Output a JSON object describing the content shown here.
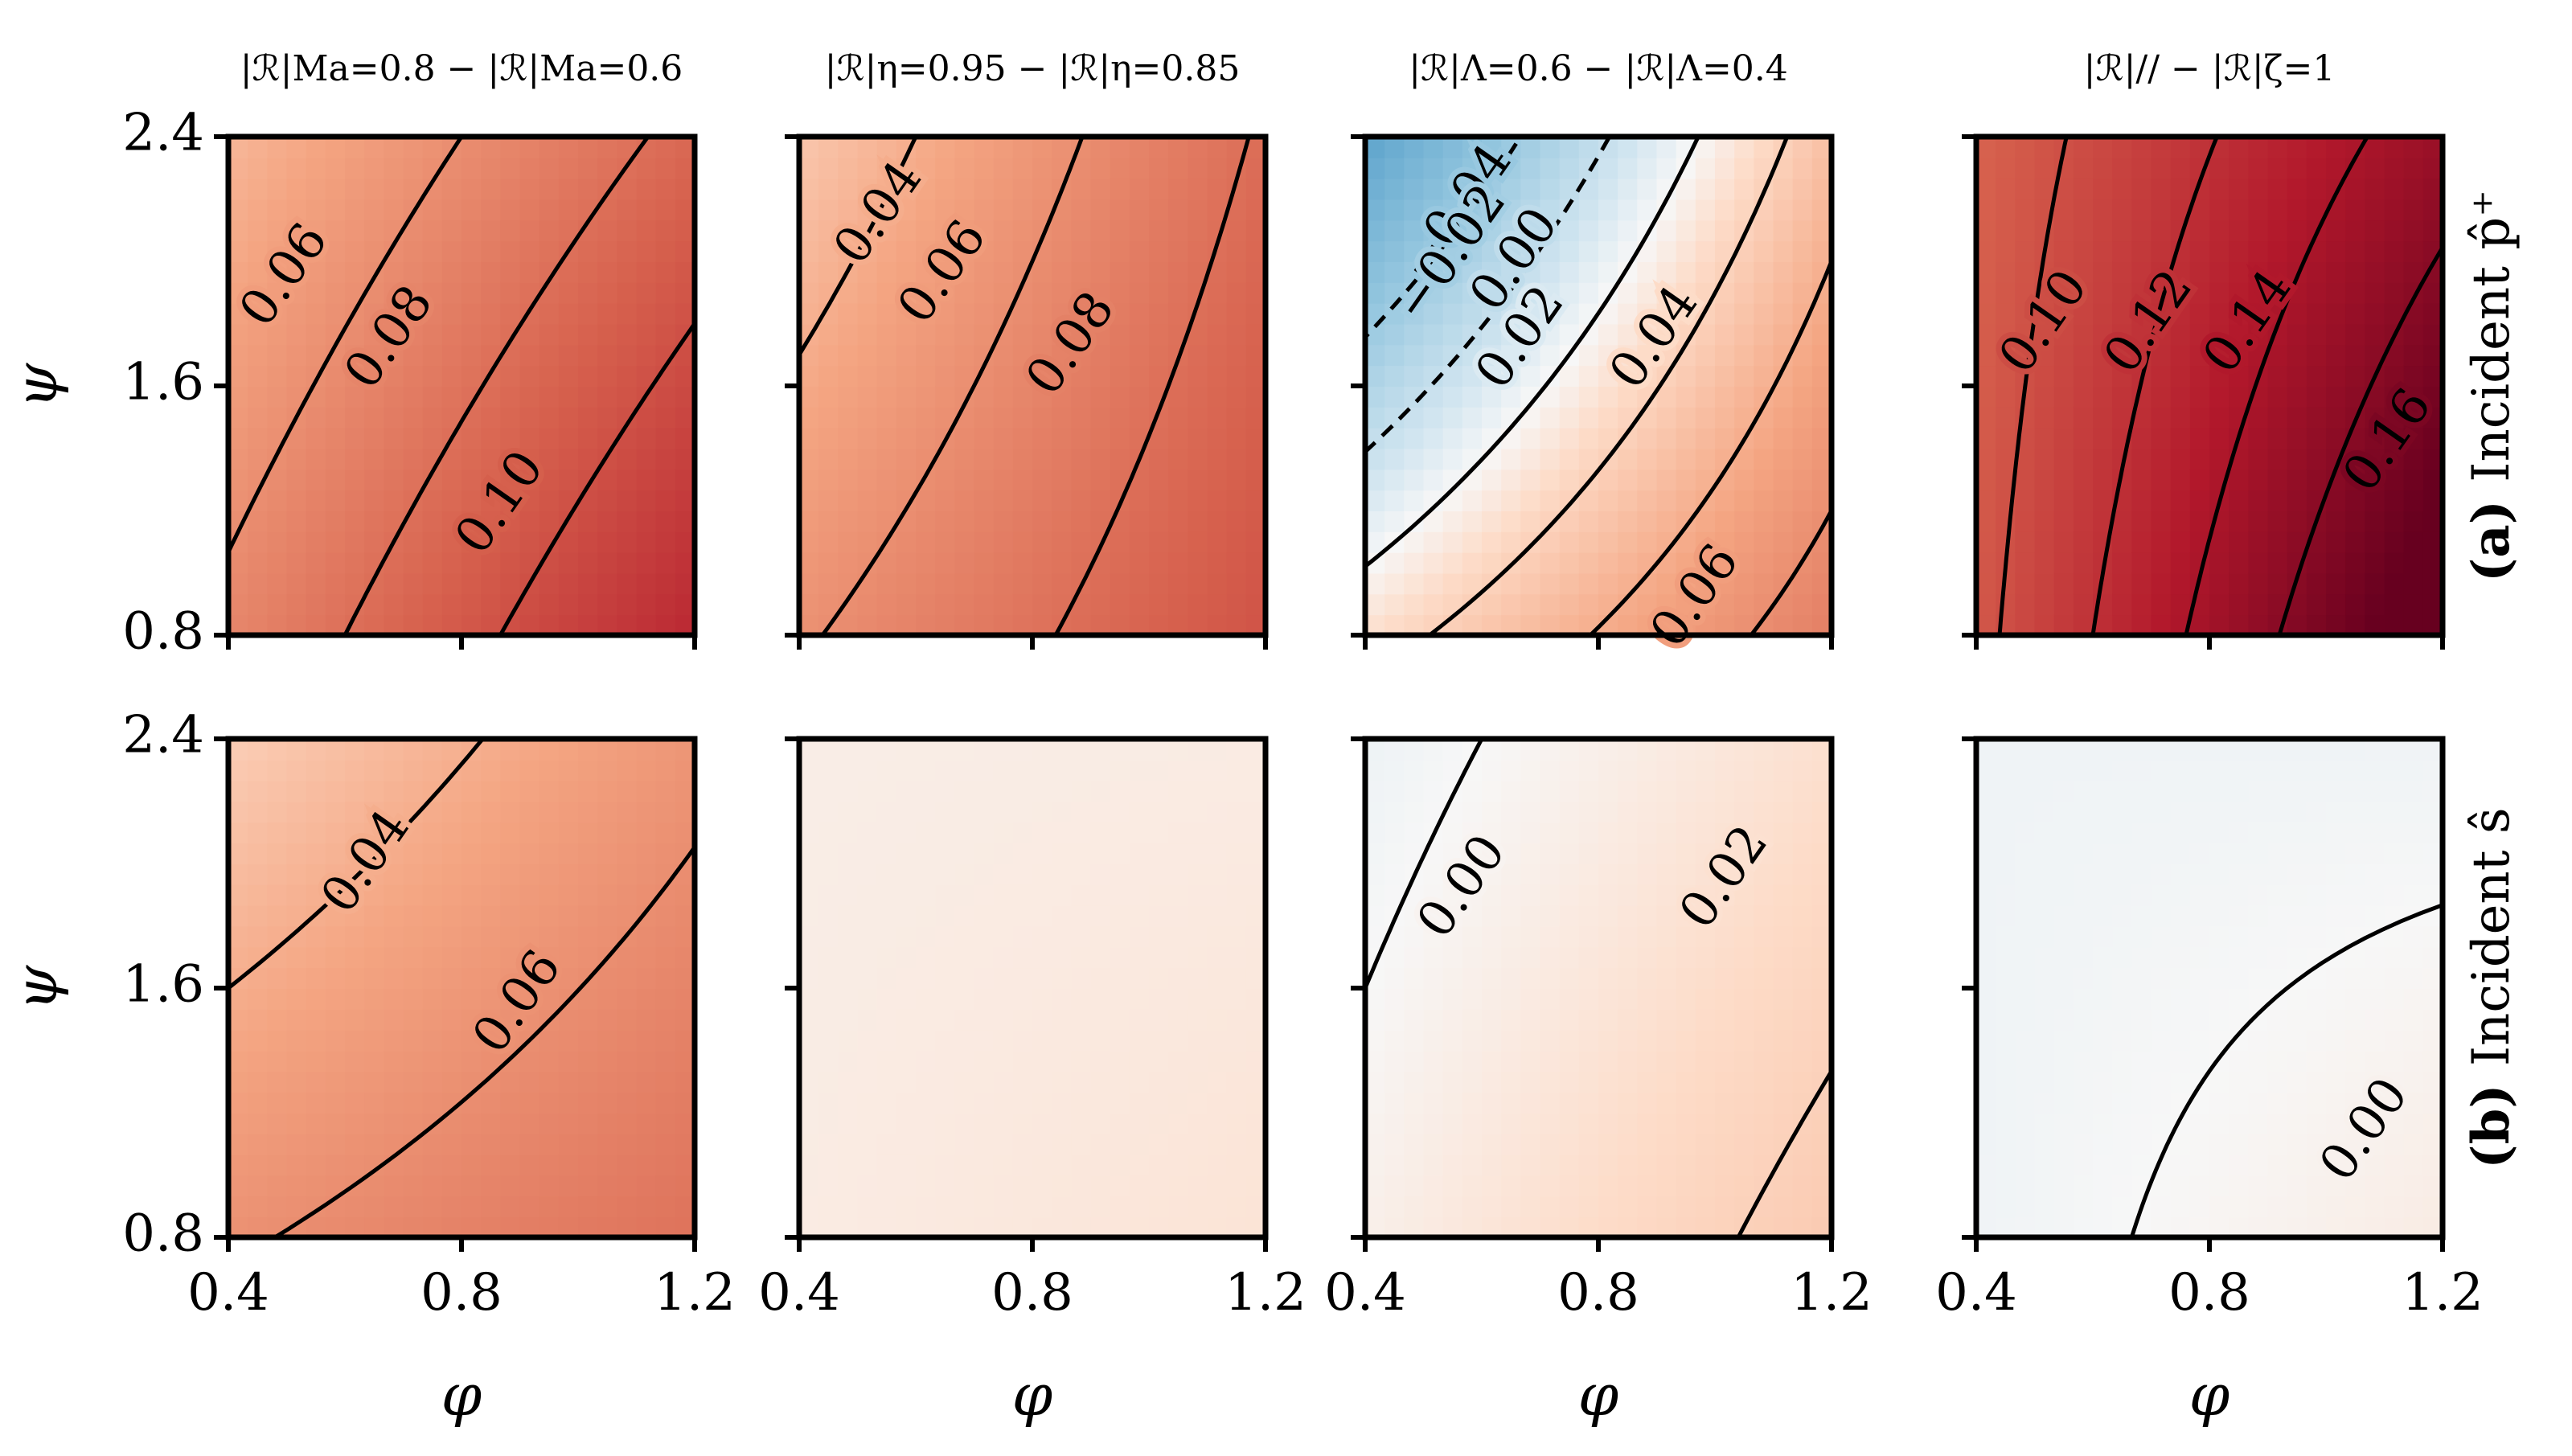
{
  "chart_data": {
    "type": "heatmap",
    "colormap": "RdBu_r",
    "xlabel": "φ",
    "ylabel": "ψ",
    "xlim": [
      0.4,
      1.2
    ],
    "ylim": [
      0.8,
      2.4
    ],
    "xticks": [
      "0.4",
      "0.8",
      "1.2"
    ],
    "yticks": [
      "0.8",
      "1.6",
      "2.4"
    ],
    "color_range": [
      -0.18,
      0.18
    ],
    "column_titles": [
      "|ℛ|Ma=0.8 − |ℛ|Ma=0.6",
      "|ℛ|η=0.95 − |ℛ|η=0.85",
      "|ℛ|Λ=0.6 − |ℛ|Λ=0.4",
      "|ℛ|// − |ℛ|ζ=1"
    ],
    "row_labels": [
      {
        "bold": "(a)",
        "text": "Incident p̂⁺"
      },
      {
        "bold": "(b)",
        "text": "Incident ŝ"
      }
    ],
    "panels": [
      {
        "row": 0,
        "col": 0,
        "corners": {
          "x0y0": 0.065,
          "x1y0": 0.125,
          "x0y1": 0.035,
          "x1y1": 0.085
        },
        "contours": [
          {
            "value": "0.06",
            "pos": [
              0.5,
              1.95
            ]
          },
          {
            "value": "0.08",
            "pos": [
              0.68,
              1.75
            ]
          },
          {
            "value": "0.10",
            "pos": [
              0.87,
              1.22
            ]
          }
        ]
      },
      {
        "row": 0,
        "col": 1,
        "corners": {
          "x0y0": 0.058,
          "x1y0": 0.098,
          "x0y1": 0.026,
          "x1y1": 0.082
        },
        "contours": [
          {
            "value": "0.04",
            "pos": [
              0.54,
              2.15
            ]
          },
          {
            "value": "0.06",
            "pos": [
              0.65,
              1.96
            ]
          },
          {
            "value": "0.08",
            "pos": [
              0.87,
              1.73
            ]
          }
        ]
      },
      {
        "row": 0,
        "col": 2,
        "corners": {
          "x0y0": 0.012,
          "x1y0": 0.07,
          "x0y1": -0.075,
          "x1y1": 0.03
        },
        "contours": [
          {
            "value": "−0.04",
            "pos": [
              0.56,
              2.15
            ]
          },
          {
            "value": "−0.02",
            "pos": [
              0.55,
              2.02
            ]
          },
          {
            "value": "0.00",
            "pos": [
              0.66,
              2.0
            ]
          },
          {
            "value": "0.02",
            "pos": [
              0.67,
              1.75
            ]
          },
          {
            "value": "0.04",
            "pos": [
              0.9,
              1.75
            ]
          },
          {
            "value": "0.06",
            "pos": [
              0.97,
              0.92
            ]
          }
        ]
      },
      {
        "row": 0,
        "col": 3,
        "corners": {
          "x0y0": 0.095,
          "x1y0": 0.195,
          "x0y1": 0.088,
          "x1y1": 0.15
        },
        "contours": [
          {
            "value": "0.10",
            "pos": [
              0.52,
              1.8
            ]
          },
          {
            "value": "0.12",
            "pos": [
              0.7,
              1.8
            ]
          },
          {
            "value": "0.14",
            "pos": [
              0.87,
              1.8
            ]
          },
          {
            "value": "0.16",
            "pos": [
              1.11,
              1.42
            ]
          }
        ]
      },
      {
        "row": 1,
        "col": 0,
        "corners": {
          "x0y0": 0.058,
          "x1y0": 0.078,
          "x0y1": 0.022,
          "x1y1": 0.055
        },
        "contours": [
          {
            "value": "0.04",
            "pos": [
              0.64,
              2.0
            ]
          },
          {
            "value": "0.06",
            "pos": [
              0.9,
              1.55
            ]
          }
        ]
      },
      {
        "row": 1,
        "col": 1,
        "corners": {
          "x0y0": 0.006,
          "x1y0": 0.01,
          "x0y1": 0.005,
          "x1y1": 0.006
        },
        "contours": []
      },
      {
        "row": 1,
        "col": 2,
        "corners": {
          "x0y0": 0.004,
          "x1y0": 0.024,
          "x0y1": -0.004,
          "x1y1": 0.012
        },
        "contours": [
          {
            "value": "0.00",
            "pos": [
              0.57,
              1.92
            ]
          },
          {
            "value": "0.02",
            "pos": [
              1.02,
              1.95
            ]
          }
        ]
      },
      {
        "row": 1,
        "col": 3,
        "corners": {
          "x0y0": -0.003,
          "x1y0": 0.006,
          "x0y1": -0.003,
          "x1y1": -0.003
        },
        "contours": [
          {
            "value": "0.00",
            "pos": [
              1.07,
              1.14
            ]
          }
        ]
      }
    ]
  }
}
